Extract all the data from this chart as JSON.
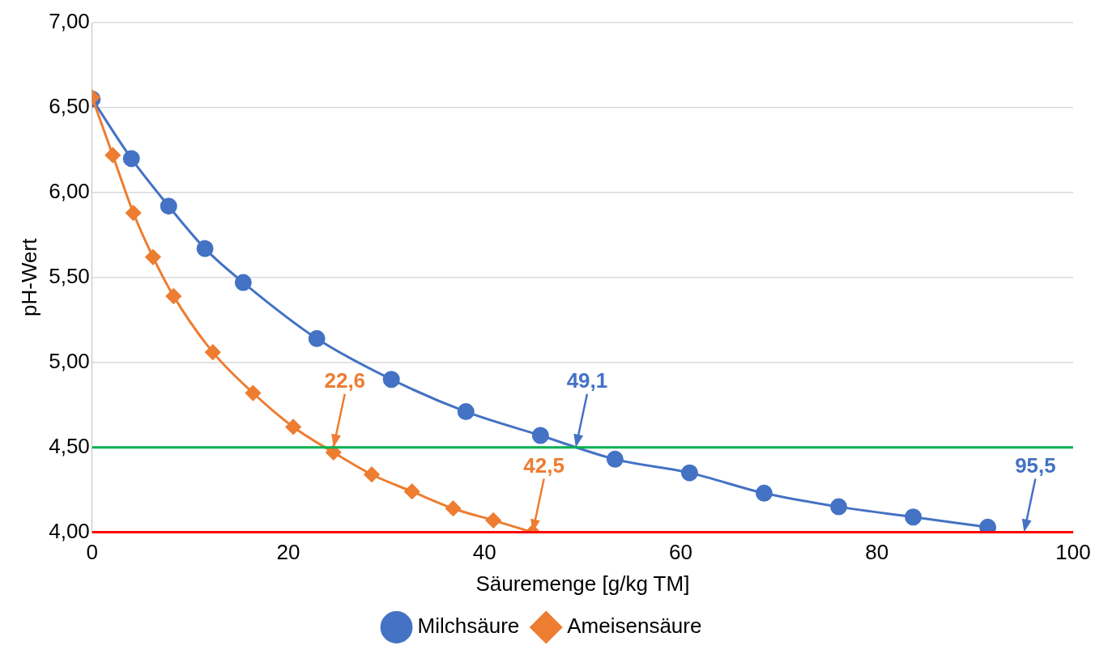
{
  "chart_data": {
    "type": "line",
    "xlabel": "Säuremenge [g/kg TM]",
    "ylabel": "pH-Wert",
    "xlim": [
      0,
      100
    ],
    "xticks": [
      0,
      20,
      40,
      60,
      80,
      100
    ],
    "ylim": [
      4,
      7
    ],
    "yticks": [
      {
        "value": 4,
        "label": "4,00"
      },
      {
        "value": 4.5,
        "label": "4,50"
      },
      {
        "value": 5,
        "label": "5,00"
      },
      {
        "value": 5.5,
        "label": "5,50"
      },
      {
        "value": 6,
        "label": "6,00"
      },
      {
        "value": 6.5,
        "label": "6,50"
      },
      {
        "value": 7,
        "label": "7,00"
      }
    ],
    "grid": "y",
    "legend": "bottom",
    "series": [
      {
        "name": "Milchsäure",
        "color": "#4472c4",
        "marker": "circle",
        "x": [
          0,
          4.0,
          7.8,
          11.5,
          15.4,
          22.9,
          30.5,
          38.1,
          45.7,
          53.3,
          60.9,
          68.5,
          76.1,
          83.7,
          91.3
        ],
        "values": [
          6.55,
          6.2,
          5.92,
          5.67,
          5.47,
          5.14,
          4.9,
          4.71,
          4.57,
          4.43,
          4.35,
          4.23,
          4.15,
          4.09,
          4.03
        ]
      },
      {
        "name": "Ameisensäure",
        "color": "#ed7d31",
        "marker": "diamond",
        "x": [
          0,
          2.1,
          4.2,
          6.2,
          8.3,
          12.3,
          16.4,
          20.5,
          24.6,
          28.5,
          32.6,
          36.8,
          40.9,
          44.9
        ],
        "values": [
          6.56,
          6.22,
          5.88,
          5.62,
          5.39,
          5.06,
          4.82,
          4.62,
          4.47,
          4.34,
          4.24,
          4.14,
          4.07,
          4.0
        ]
      }
    ],
    "ref_lines": [
      {
        "axis": "y",
        "value": 4.5,
        "color": "#00b050"
      },
      {
        "axis": "y",
        "value": 4.0,
        "color": "#ff0000"
      }
    ],
    "annotations": [
      {
        "text": "22,6",
        "x": 24.6,
        "y": 4.5
      },
      {
        "text": "42,5",
        "x": 44.9,
        "y": 4.0
      },
      {
        "text": "49,1",
        "x": 49.3,
        "y": 4.5
      },
      {
        "text": "95,5",
        "x": 95.0,
        "y": 4.0
      }
    ]
  }
}
